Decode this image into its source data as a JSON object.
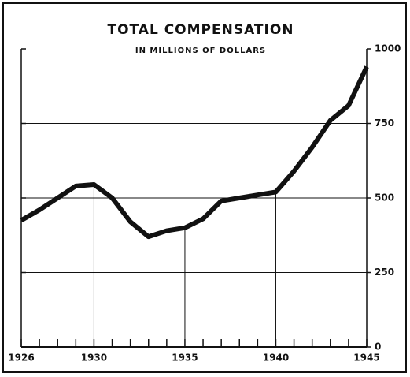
{
  "chart_data": {
    "type": "line",
    "title": "TOTAL COMPENSATION",
    "subtitle": "IN MILLIONS OF DOLLARS",
    "x": [
      1926,
      1927,
      1928,
      1929,
      1930,
      1931,
      1932,
      1933,
      1934,
      1935,
      1936,
      1937,
      1938,
      1939,
      1940,
      1941,
      1942,
      1943,
      1944,
      1945
    ],
    "series": [
      {
        "color": "#111111",
        "values": [
          425,
          460,
          500,
          540,
          545,
          500,
          420,
          370,
          390,
          400,
          430,
          490,
          500,
          510,
          520,
          590,
          670,
          760,
          810,
          940
        ]
      }
    ],
    "xlim": [
      1926,
      1945
    ],
    "xticks": [
      1926,
      1930,
      1935,
      1940,
      1945
    ],
    "ylim": [
      0,
      1000
    ],
    "yticks": [
      0,
      250,
      500,
      750,
      1000
    ],
    "grid": true
  }
}
